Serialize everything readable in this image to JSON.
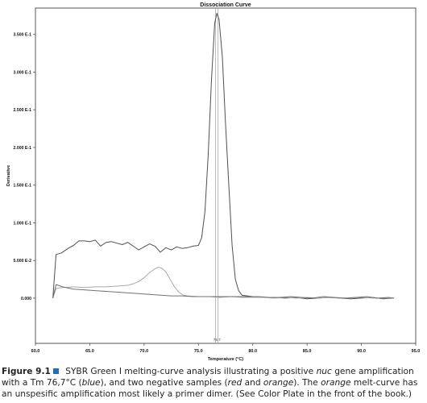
{
  "chart_data": {
    "type": "line",
    "title": "Dissociation Curve",
    "xlabel": "Temperature (°C)",
    "ylabel": "Derivative",
    "xlim": [
      60.0,
      95.0
    ],
    "ylim": [
      -0.06,
      0.385
    ],
    "x_ticks": [
      60.0,
      65.0,
      70.0,
      75.0,
      80.0,
      85.0,
      90.0,
      95.0
    ],
    "x_tick_labels": [
      "60.0",
      "65.0",
      "70.0",
      "75.0",
      "80.0",
      "85.0",
      "90.0",
      "95.0"
    ],
    "y_ticks": [
      0.0,
      0.05,
      0.1,
      0.15,
      0.2,
      0.25,
      0.3,
      0.35
    ],
    "y_tick_labels": [
      "0.000",
      "5.000 E-2",
      "1.000 E-1",
      "1.500 E-1",
      "2.000 E-1",
      "2.500 E-1",
      "3.000 E-1",
      "3.500 E-1"
    ],
    "grid": false,
    "marker": {
      "x": 76.7,
      "label": "76.7"
    },
    "series": [
      {
        "color": "#505050",
        "x": [
          61.6,
          61.9,
          62.4,
          63.0,
          63.5,
          64.0,
          64.5,
          65.0,
          65.5,
          66.0,
          66.5,
          67.0,
          67.5,
          68.0,
          68.5,
          69.0,
          69.5,
          70.0,
          70.5,
          71.0,
          71.5,
          72.0,
          72.5,
          73.0,
          73.5,
          74.0,
          74.5,
          75.0,
          75.3,
          75.6,
          75.9,
          76.2,
          76.5,
          76.7,
          76.9,
          77.2,
          77.5,
          77.8,
          78.1,
          78.4,
          78.7,
          79.0,
          79.5,
          80.0,
          81.0,
          82.0,
          83.0,
          84.0,
          85.0,
          86.0,
          87.0,
          88.0,
          89.0,
          90.0,
          91.0,
          92.0,
          93.0
        ],
        "y": [
          0.0,
          0.058,
          0.06,
          0.066,
          0.07,
          0.076,
          0.076,
          0.075,
          0.077,
          0.069,
          0.074,
          0.075,
          0.073,
          0.071,
          0.074,
          0.069,
          0.064,
          0.068,
          0.072,
          0.069,
          0.061,
          0.067,
          0.064,
          0.068,
          0.066,
          0.067,
          0.069,
          0.07,
          0.08,
          0.115,
          0.19,
          0.29,
          0.365,
          0.378,
          0.37,
          0.32,
          0.23,
          0.15,
          0.07,
          0.025,
          0.01,
          0.004,
          0.003,
          0.002,
          0.001,
          0.001,
          0.0,
          0.001,
          -0.001,
          0.0,
          0.001,
          0.0,
          -0.001,
          0.0,
          0.001,
          -0.001,
          0.0
        ]
      },
      {
        "color": "#a8a8a8",
        "x": [
          61.6,
          61.9,
          62.5,
          63.5,
          64.5,
          65.5,
          66.5,
          67.5,
          68.5,
          69.0,
          69.5,
          70.0,
          70.5,
          71.0,
          71.3,
          71.6,
          72.0,
          72.4,
          72.8,
          73.2,
          73.6,
          74.0,
          75.0,
          76.0,
          77.0,
          78.0,
          79.0,
          80.0,
          81.0,
          82.0,
          83.0,
          84.0,
          85.0,
          86.0,
          87.0,
          88.0,
          89.0,
          90.0,
          91.0,
          92.0,
          93.0
        ],
        "y": [
          0.0,
          0.013,
          0.014,
          0.015,
          0.014,
          0.015,
          0.015,
          0.016,
          0.017,
          0.019,
          0.022,
          0.027,
          0.034,
          0.039,
          0.041,
          0.04,
          0.035,
          0.025,
          0.015,
          0.008,
          0.004,
          0.003,
          0.002,
          0.002,
          0.001,
          0.002,
          0.001,
          0.001,
          0.001,
          0.0,
          0.001,
          0.0,
          0.001,
          0.0,
          0.001,
          0.0,
          0.0,
          0.001,
          0.0,
          0.0,
          0.0
        ]
      },
      {
        "color": "#707070",
        "x": [
          61.6,
          61.9,
          62.5,
          63.5,
          64.5,
          65.5,
          66.5,
          67.5,
          68.5,
          69.5,
          70.5,
          71.5,
          72.5,
          73.5,
          74.5,
          75.5,
          76.5,
          77.5,
          78.5,
          79.5,
          80.5,
          81.5,
          82.5,
          83.5,
          84.5,
          85.5,
          86.5,
          87.5,
          88.5,
          89.5,
          90.5,
          91.5,
          92.5,
          93.0
        ],
        "y": [
          0.0,
          0.018,
          0.015,
          0.012,
          0.011,
          0.01,
          0.009,
          0.008,
          0.007,
          0.006,
          0.005,
          0.004,
          0.003,
          0.003,
          0.002,
          0.002,
          0.002,
          0.002,
          0.002,
          0.002,
          0.002,
          0.001,
          0.001,
          0.002,
          0.001,
          0.0,
          0.002,
          0.001,
          0.0,
          0.001,
          0.002,
          0.0,
          0.001,
          0.0
        ]
      }
    ]
  },
  "caption": {
    "label": "Figure 9.1",
    "t1": " SYBR Green I melting-curve analysis illustrating a positive ",
    "t2": "nuc",
    "t3": " gene amplification with a Tm 76,7°C (",
    "t4": "blue",
    "t5": "), and two negative samples (",
    "t6": "red",
    "t7": " and ",
    "t8": "orange",
    "t9": "). The ",
    "t10": "orange",
    "t11": " melt-curve has an unspesific amplification most likely a primer dimer. (See Color Plate in the front of the book.)"
  }
}
